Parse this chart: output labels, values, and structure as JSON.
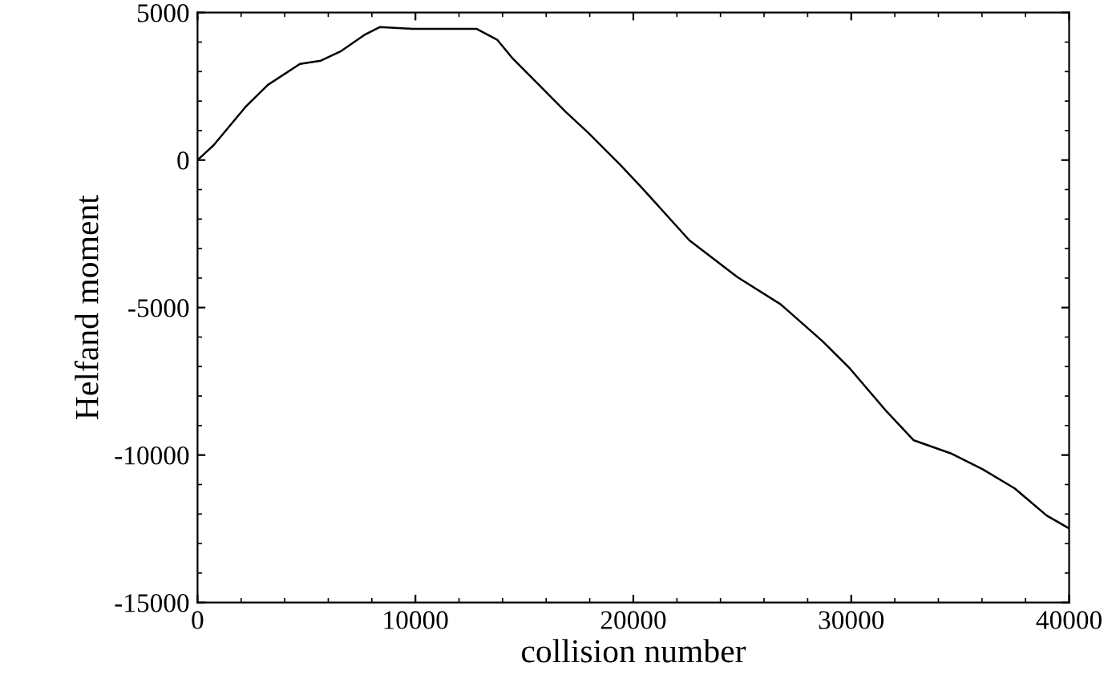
{
  "chart_data": {
    "type": "line",
    "xlabel": "collision number",
    "ylabel": "Helfand moment",
    "xlim": [
      0,
      40000
    ],
    "ylim": [
      -15000,
      5000
    ],
    "xticks": [
      0,
      10000,
      20000,
      30000,
      40000
    ],
    "yticks": [
      -15000,
      -10000,
      -5000,
      0,
      5000
    ],
    "grid": false,
    "legend": false,
    "marker": "none",
    "line_style": "solid",
    "series": [
      {
        "color": "#000000",
        "x": [
          0,
          735,
          2200,
          3230,
          4700,
          5660,
          6600,
          7650,
          8380,
          9850,
          11550,
          12800,
          13750,
          14480,
          15440,
          16900,
          17940,
          19400,
          20370,
          22570,
          24780,
          26760,
          28680,
          29930,
          31620,
          32870,
          34560,
          36030,
          37500,
          38970,
          40000
        ],
        "values": [
          0,
          500,
          1800,
          2550,
          3260,
          3370,
          3700,
          4240,
          4510,
          4450,
          4450,
          4450,
          4080,
          3430,
          2720,
          1630,
          920,
          -160,
          -920,
          -2720,
          -3970,
          -4890,
          -6140,
          -7060,
          -8520,
          -9500,
          -9940,
          -10480,
          -11130,
          -12050,
          -12490
        ]
      }
    ]
  }
}
